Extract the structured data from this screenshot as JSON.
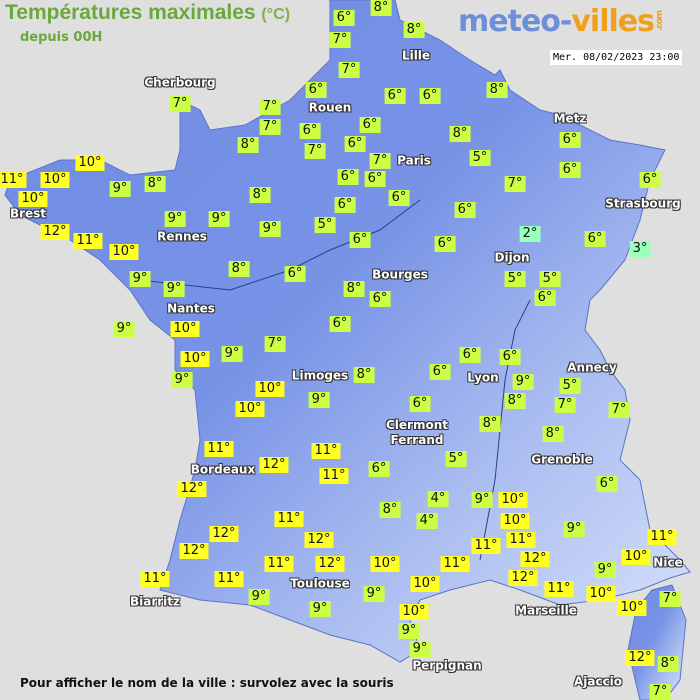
{
  "header": {
    "title": "Températures maximales",
    "unit": "(°C)",
    "subtitle": "depuis 00H"
  },
  "logo": {
    "part1": "meteo-",
    "part2": "villes",
    "part3": ".com"
  },
  "timestamp": "Mer. 08/02/2023 23:00",
  "footer": "Pour afficher le nom de la ville : survolez avec la souris",
  "colors": {
    "background": "#e0dfdf",
    "land": "#7a93e6",
    "warm_label": "#ffff22",
    "mild_label": "#ccff44",
    "cold_label": "#99ffbb"
  },
  "cities": [
    "Cherbourg",
    "Rouen",
    "Lille",
    "Paris",
    "Metz",
    "Strasbourg",
    "Brest",
    "Rennes",
    "Nantes",
    "Bourges",
    "Dijon",
    "Limoges",
    "Lyon",
    "Annecy",
    "Clermont\nFerrand",
    "Grenoble",
    "Bordeaux",
    "Toulouse",
    "Biarritz",
    "Marseille",
    "Nice",
    "Perpignan",
    "Ajaccio"
  ],
  "temperatures": [
    6,
    8,
    7,
    8,
    7,
    6,
    6,
    6,
    8,
    7,
    7,
    6,
    6,
    8,
    7,
    6,
    7,
    8,
    5,
    6,
    6,
    7,
    6,
    6,
    6,
    6,
    7,
    10,
    11,
    10,
    10,
    9,
    8,
    8,
    9,
    9,
    9,
    5,
    6,
    12,
    11,
    10,
    6,
    6,
    6,
    2,
    6,
    3,
    9,
    9,
    8,
    6,
    8,
    6,
    5,
    5,
    6,
    9,
    10,
    6,
    7,
    9,
    10,
    9,
    8,
    6,
    6,
    6,
    9,
    8,
    5,
    7,
    7,
    10,
    10,
    9,
    6,
    8,
    8,
    11,
    12,
    11,
    11,
    6,
    5,
    6,
    12,
    8,
    4,
    4,
    9,
    10,
    10,
    9,
    11,
    12,
    12,
    12,
    11,
    11,
    12,
    12,
    11,
    11,
    10,
    9,
    10,
    12,
    11,
    10,
    11,
    11,
    11,
    9,
    9,
    10,
    10,
    9,
    9,
    9,
    10,
    7,
    12,
    8,
    7
  ],
  "degree_suffix": "°"
}
